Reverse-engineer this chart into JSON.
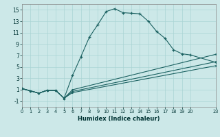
{
  "xlabel": "Humidex (Indice chaleur)",
  "xlim": [
    0,
    23
  ],
  "ylim": [
    -2,
    16
  ],
  "xticks": [
    0,
    1,
    2,
    3,
    4,
    5,
    6,
    7,
    8,
    9,
    10,
    11,
    12,
    13,
    14,
    15,
    16,
    17,
    18,
    19,
    20,
    23
  ],
  "yticks": [
    -1,
    1,
    3,
    5,
    7,
    9,
    11,
    13,
    15
  ],
  "bg_color": "#cce8e8",
  "line_color": "#1a6060",
  "grid_color": "#aad4d4",
  "main_line": {
    "x": [
      0,
      1,
      2,
      3,
      4,
      5,
      6,
      7,
      8,
      9,
      10,
      11,
      12,
      13,
      14,
      15,
      16,
      17,
      18,
      19,
      20,
      23
    ],
    "y": [
      1.2,
      0.8,
      0.4,
      0.9,
      0.9,
      -0.5,
      3.5,
      6.8,
      10.2,
      12.4,
      14.7,
      15.2,
      14.5,
      14.4,
      14.3,
      13.0,
      11.2,
      10.0,
      8.0,
      7.3,
      7.1,
      5.8
    ]
  },
  "band_lines": [
    {
      "x": [
        0,
        1,
        2,
        3,
        4,
        5,
        6,
        23
      ],
      "y": [
        1.2,
        0.8,
        0.4,
        0.9,
        0.9,
        -0.5,
        1.0,
        7.2
      ]
    },
    {
      "x": [
        0,
        1,
        2,
        3,
        4,
        5,
        6,
        23
      ],
      "y": [
        1.2,
        0.8,
        0.4,
        0.9,
        0.9,
        -0.5,
        0.7,
        5.9
      ]
    },
    {
      "x": [
        0,
        1,
        2,
        3,
        4,
        5,
        6,
        23
      ],
      "y": [
        1.2,
        0.8,
        0.4,
        0.9,
        0.9,
        -0.5,
        0.5,
        5.2
      ]
    }
  ]
}
